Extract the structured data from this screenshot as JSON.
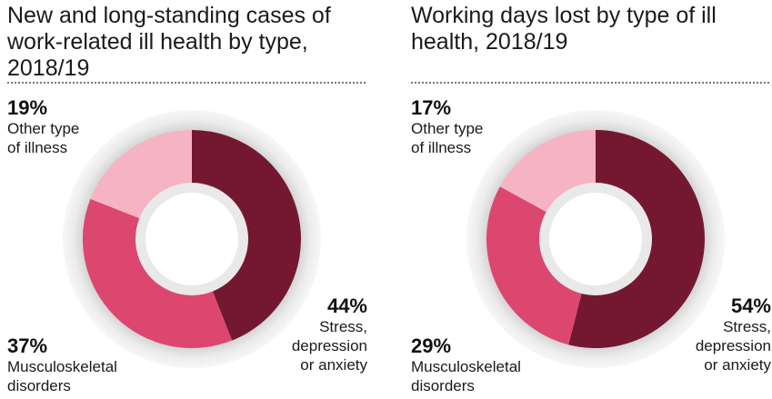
{
  "chart_data": [
    {
      "type": "pie",
      "title": "New and long-standing cases of work-related ill health by type, 2018/19",
      "categories": [
        "Stress, depression or anxiety",
        "Musculoskeletal disorders",
        "Other type of illness"
      ],
      "values": [
        44,
        37,
        19
      ],
      "percent_labels": [
        "44%",
        "37%",
        "19%"
      ],
      "colors": [
        "#741832",
        "#dc4770",
        "#f6b3c3"
      ]
    },
    {
      "type": "pie",
      "title": "Working days lost by type of ill health, 2018/19",
      "categories": [
        "Stress, depression or anxiety",
        "Musculoskeletal disorders",
        "Other type of illness"
      ],
      "values": [
        54,
        29,
        17
      ],
      "percent_labels": [
        "54%",
        "29%",
        "17%"
      ],
      "colors": [
        "#741832",
        "#dc4770",
        "#f6b3c3"
      ]
    }
  ],
  "labels": {
    "stress": "Stress,\ndepression\nor anxiety",
    "msk": "Musculoskeletal\ndisorders",
    "other": "Other type\nof illness"
  }
}
